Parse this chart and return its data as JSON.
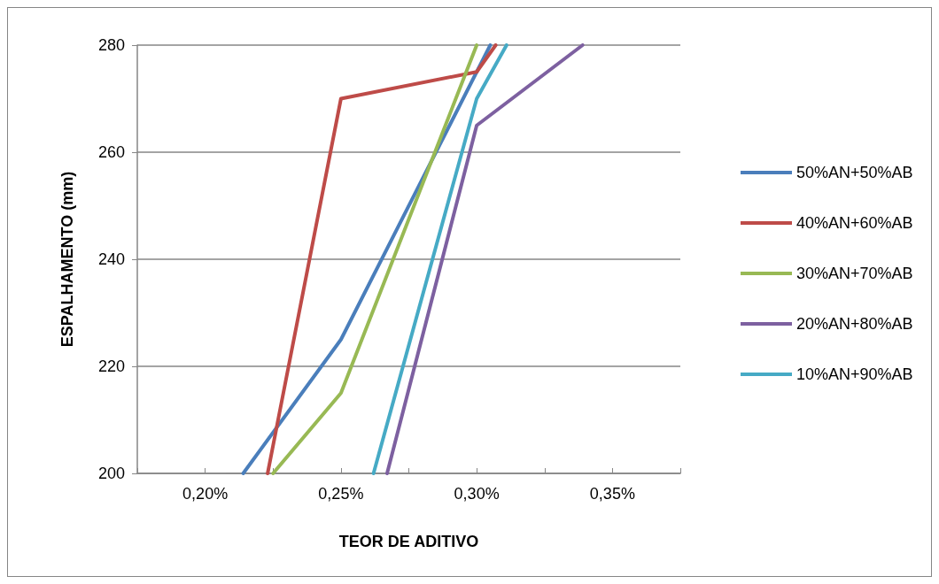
{
  "chart_data": {
    "type": "line",
    "xlabel": "TEOR DE ADITIVO",
    "ylabel": "ESPALHAMENTO (mm)",
    "xlim": [
      0.175,
      0.375
    ],
    "ylim": [
      200,
      280
    ],
    "xticks": [
      {
        "value": 0.175,
        "label": null
      },
      {
        "value": 0.2,
        "label": "0,20%"
      },
      {
        "value": 0.225,
        "label": null
      },
      {
        "value": 0.25,
        "label": "0,25%"
      },
      {
        "value": 0.275,
        "label": null
      },
      {
        "value": 0.3,
        "label": "0,30%"
      },
      {
        "value": 0.325,
        "label": null
      },
      {
        "value": 0.35,
        "label": "0,35%"
      },
      {
        "value": 0.375,
        "label": null
      }
    ],
    "yticks": [
      200,
      220,
      240,
      260,
      280
    ],
    "grid": "y",
    "legend": "right",
    "marker": "none",
    "line_style": "solid",
    "series": [
      {
        "name": "50%AN+50%AB",
        "color": "#4a7ebb",
        "x": [
          0.214,
          0.25,
          0.305
        ],
        "values": [
          200,
          225,
          280
        ]
      },
      {
        "name": "40%AN+60%AB",
        "color": "#be4b48",
        "x": [
          0.223,
          0.25,
          0.3,
          0.307
        ],
        "values": [
          200,
          270,
          275,
          280
        ]
      },
      {
        "name": "30%AN+70%AB",
        "color": "#98b954",
        "x": [
          0.225,
          0.25,
          0.3
        ],
        "values": [
          200,
          215,
          280
        ]
      },
      {
        "name": "20%AN+80%AB",
        "color": "#7d60a0",
        "x": [
          0.267,
          0.3,
          0.339
        ],
        "values": [
          200,
          265,
          280
        ]
      },
      {
        "name": "10%AN+90%AB",
        "color": "#46aac5",
        "x": [
          0.262,
          0.3,
          0.311
        ],
        "values": [
          200,
          270,
          280
        ]
      }
    ]
  }
}
